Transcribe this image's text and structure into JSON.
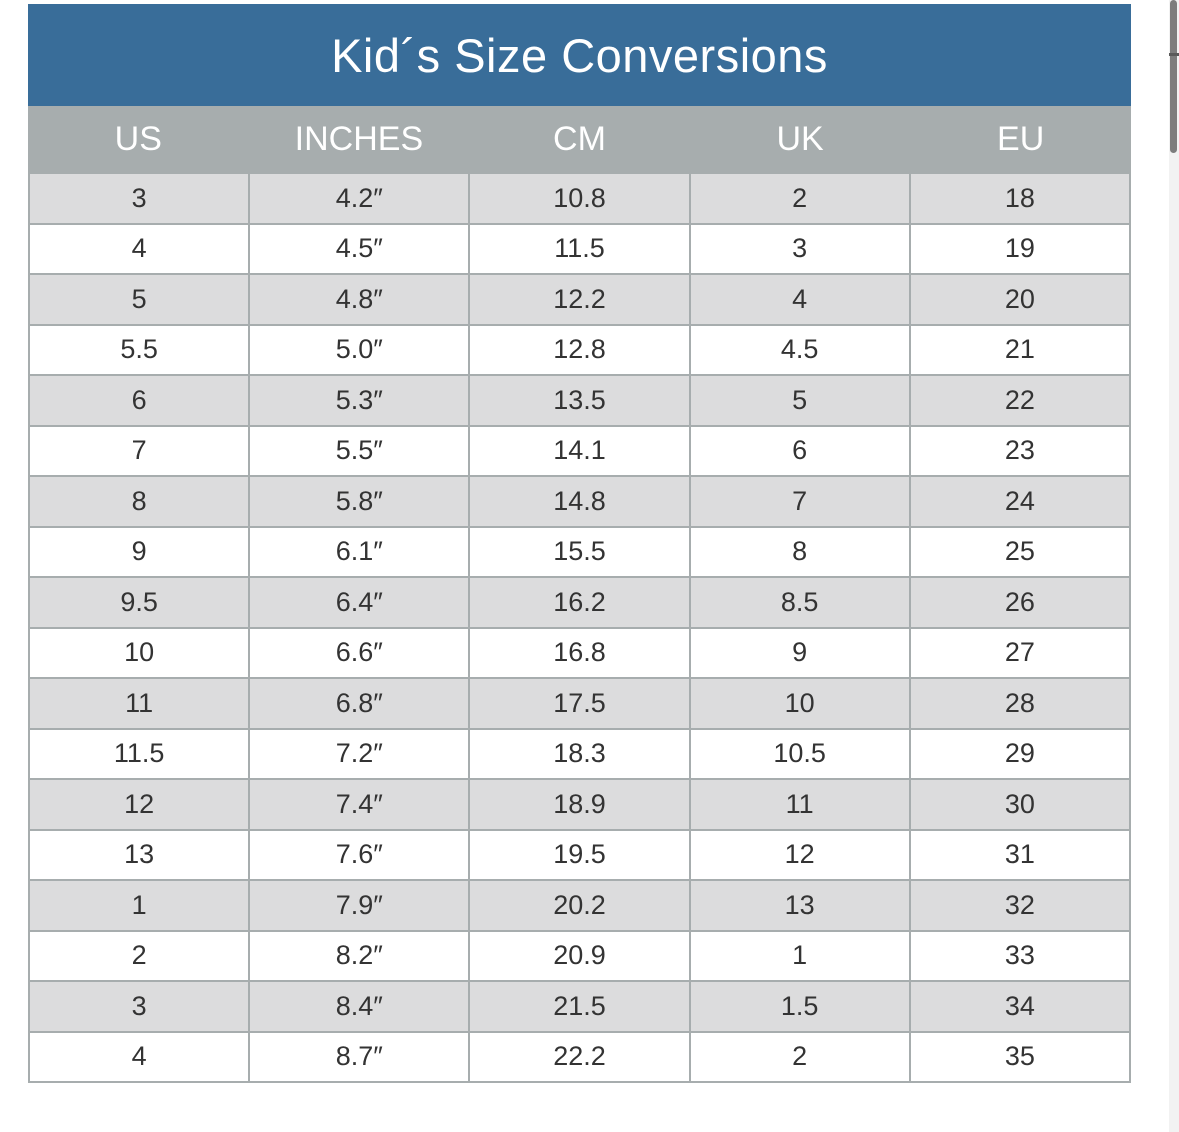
{
  "title": "Kid´s Size Conversions",
  "columns": [
    "US",
    "INCHES",
    "CM",
    "UK",
    "EU"
  ],
  "rows": [
    [
      "3",
      "4.2″",
      "10.8",
      "2",
      "18"
    ],
    [
      "4",
      "4.5″",
      "11.5",
      "3",
      "19"
    ],
    [
      "5",
      "4.8″",
      "12.2",
      "4",
      "20"
    ],
    [
      "5.5",
      "5.0″",
      "12.8",
      "4.5",
      "21"
    ],
    [
      "6",
      "5.3″",
      "13.5",
      "5",
      "22"
    ],
    [
      "7",
      "5.5″",
      "14.1",
      "6",
      "23"
    ],
    [
      "8",
      "5.8″",
      "14.8",
      "7",
      "24"
    ],
    [
      "9",
      "6.1″",
      "15.5",
      "8",
      "25"
    ],
    [
      "9.5",
      "6.4″",
      "16.2",
      "8.5",
      "26"
    ],
    [
      "10",
      "6.6″",
      "16.8",
      "9",
      "27"
    ],
    [
      "11",
      "6.8″",
      "17.5",
      "10",
      "28"
    ],
    [
      "11.5",
      "7.2″",
      "18.3",
      "10.5",
      "29"
    ],
    [
      "12",
      "7.4″",
      "18.9",
      "11",
      "30"
    ],
    [
      "13",
      "7.6″",
      "19.5",
      "12",
      "31"
    ],
    [
      "1",
      "7.9″",
      "20.2",
      "13",
      "32"
    ],
    [
      "2",
      "8.2″",
      "20.9",
      "1",
      "33"
    ],
    [
      "3",
      "8.4″",
      "21.5",
      "1.5",
      "34"
    ],
    [
      "4",
      "8.7″",
      "22.2",
      "2",
      "35"
    ]
  ],
  "colors": {
    "title_bg": "#396d99",
    "header_bg": "#a7adae",
    "row_shade": "#dcdcdd",
    "row_plain": "#ffffff",
    "text": "#333333"
  }
}
